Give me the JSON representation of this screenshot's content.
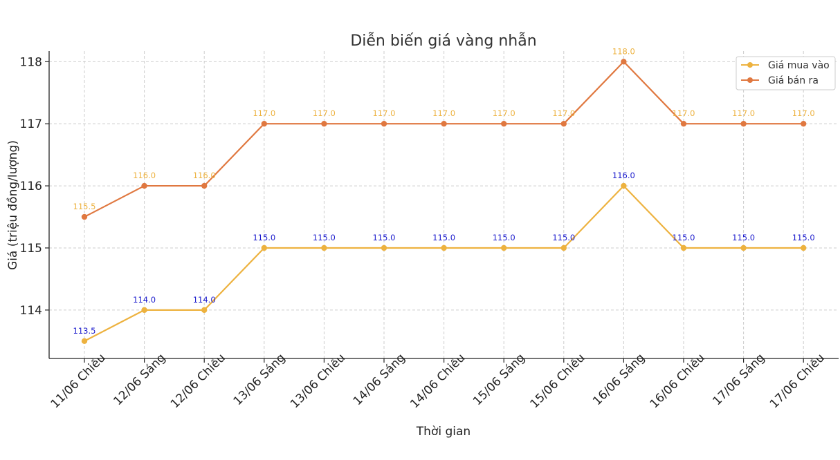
{
  "chart_data": {
    "type": "line",
    "title": "Diễn biến giá vàng nhẫn",
    "xlabel": "Thời gian",
    "ylabel": "Giá (triệu đồng/lượng)",
    "categories": [
      "11/06 Chiều",
      "12/06 Sáng",
      "12/06 Chiều",
      "13/06 Sáng",
      "13/06 Chiều",
      "14/06 Sáng",
      "14/06 Chiều",
      "15/06 Sáng",
      "15/06 Chiều",
      "16/06 Sáng",
      "16/06 Chiều",
      "17/06 Sáng",
      "17/06 Chiều"
    ],
    "yticks": [
      114,
      115,
      116,
      117,
      118
    ],
    "ylim": [
      113.22,
      118.17
    ],
    "grid": true,
    "legend_position": "top-right",
    "series": [
      {
        "name": "Giá mua vào",
        "color": "#EDB23F",
        "label_color": "#1a1acc",
        "values": [
          113.5,
          114.0,
          114.0,
          115.0,
          115.0,
          115.0,
          115.0,
          115.0,
          115.0,
          116.0,
          115.0,
          115.0,
          115.0
        ],
        "labels": [
          "113.5",
          "114.0",
          "114.0",
          "115.0",
          "115.0",
          "115.0",
          "115.0",
          "115.0",
          "115.0",
          "116.0",
          "115.0",
          "115.0",
          "115.0"
        ]
      },
      {
        "name": "Giá bán ra",
        "color": "#E07840",
        "label_color": "#EDB23F",
        "values": [
          115.5,
          116.0,
          116.0,
          117.0,
          117.0,
          117.0,
          117.0,
          117.0,
          117.0,
          118.0,
          117.0,
          117.0,
          117.0
        ],
        "labels": [
          "115.5",
          "116.0",
          "116.0",
          "117.0",
          "117.0",
          "117.0",
          "117.0",
          "117.0",
          "117.0",
          "118.0",
          "117.0",
          "117.0",
          "117.0"
        ]
      }
    ]
  }
}
